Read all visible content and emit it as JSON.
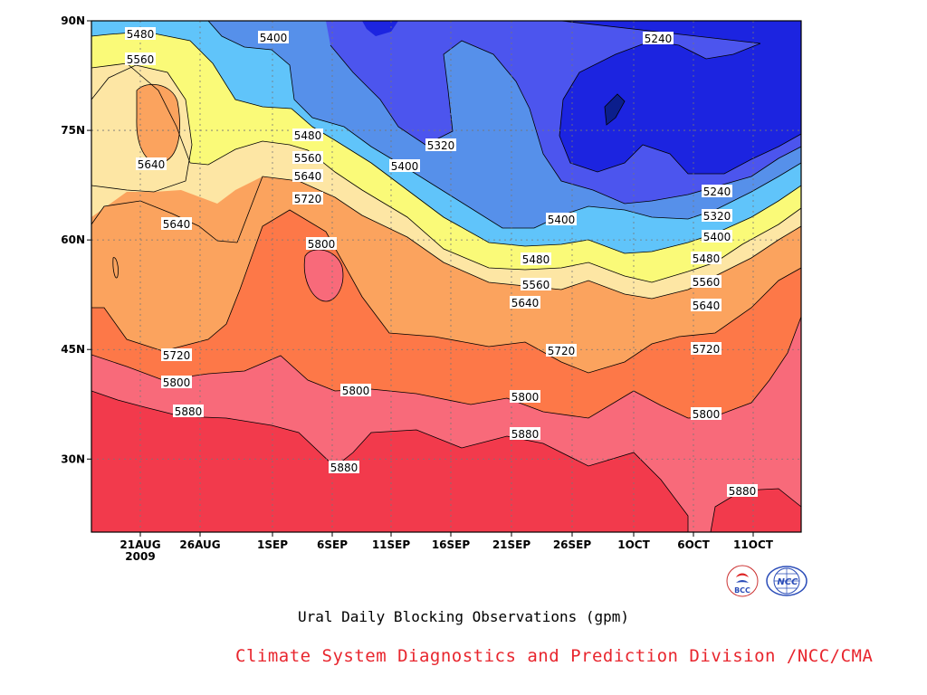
{
  "chart_data": {
    "type": "heatmap",
    "subtype": "time-latitude filled contour",
    "title": "Ural Daily Blocking Observations (gpm)",
    "credit": "Climate System Diagnostics and Prediction Division /NCC/CMA",
    "x_ticks": [
      "21AUG",
      "26AUG",
      "1SEP",
      "6SEP",
      "11SEP",
      "16SEP",
      "21SEP",
      "26SEP",
      "1OCT",
      "6OCT",
      "11OCT"
    ],
    "x_tick_display": [
      "21AUG",
      "26AUG",
      "1SEP",
      "6SEP",
      "11SEP",
      "16SEP",
      "21SEP",
      "26SEP",
      "1OCT",
      "6OCT",
      "11OCT"
    ],
    "x_year_label": "2009",
    "y_ticks": [
      "90N",
      "75N",
      "60N",
      "45N",
      "30N"
    ],
    "y_range": [
      20,
      90
    ],
    "contour_levels": [
      5240,
      5320,
      5400,
      5480,
      5560,
      5640,
      5720,
      5800,
      5880
    ],
    "fill_colors": {
      "below_5240": "#0b1e8c",
      "5240_5320": "#1c24e0",
      "5320_5400": "#4c55ee",
      "5400_5480": "#5690ea",
      "5480_5560": "#60c4fa",
      "5560_5640": "#fafa78",
      "5640_5720": "#fde6a4",
      "5720_5800": "#fba35e",
      "5800_5880": "#fd7848",
      "5880_5960": "#f86a7a",
      "above_5960": "#f23a4c"
    },
    "contour_labels": [
      "5480",
      "5560",
      "5640",
      "5400",
      "5480",
      "5560",
      "5640",
      "5720",
      "5800",
      "5640",
      "5400",
      "5320",
      "5240",
      "5240",
      "5320",
      "5400",
      "5480",
      "5560",
      "5640",
      "5400",
      "5480",
      "5560",
      "5640",
      "5720",
      "5720",
      "5720",
      "5800",
      "5800",
      "5800",
      "5800",
      "5880",
      "5880",
      "5880",
      "5880"
    ],
    "grid": true,
    "legend": "none"
  },
  "logos": [
    {
      "name": "BCC",
      "text": "BCC"
    },
    {
      "name": "NCC",
      "text": "NCC"
    }
  ]
}
